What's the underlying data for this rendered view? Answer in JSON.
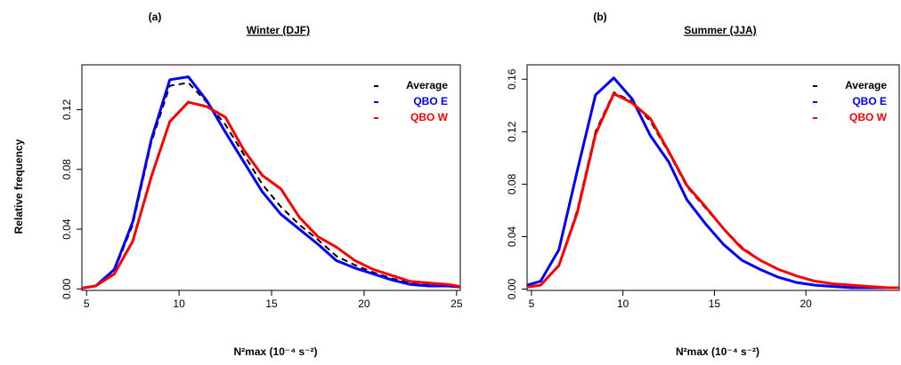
{
  "chart_data": [
    {
      "type": "line",
      "panel_label": "(a)",
      "title": "Winter (DJF)",
      "ylabel": "Relative frequency",
      "xlabel": "N²max (10⁻⁴ s⁻²)",
      "x": [
        4.5,
        5.5,
        6.5,
        7.5,
        8.5,
        9.5,
        10.5,
        11.5,
        12.5,
        13.5,
        14.5,
        15.5,
        16.5,
        17.5,
        18.5,
        19.5,
        20.5,
        21.5,
        22.5,
        23.5,
        24.5,
        25.5
      ],
      "series": [
        {
          "name": "Average",
          "color": "#000000",
          "dashed": true,
          "values": [
            0,
            0.002,
            0.012,
            0.043,
            0.098,
            0.136,
            0.138,
            0.125,
            0.11,
            0.09,
            0.07,
            0.055,
            0.043,
            0.033,
            0.022,
            0.016,
            0.011,
            0.007,
            0.004,
            0.003,
            0.002,
            0.001
          ]
        },
        {
          "name": "QBO E",
          "color": "#0000ff",
          "values": [
            0,
            0.002,
            0.013,
            0.045,
            0.1,
            0.14,
            0.142,
            0.126,
            0.105,
            0.085,
            0.065,
            0.05,
            0.04,
            0.03,
            0.019,
            0.014,
            0.01,
            0.006,
            0.003,
            0.002,
            0.002,
            0.001
          ]
        },
        {
          "name": "QBO W",
          "color": "#ff0000",
          "values": [
            0,
            0.002,
            0.01,
            0.032,
            0.075,
            0.112,
            0.125,
            0.122,
            0.115,
            0.093,
            0.076,
            0.067,
            0.048,
            0.035,
            0.028,
            0.019,
            0.013,
            0.009,
            0.005,
            0.004,
            0.003,
            0.001
          ]
        }
      ],
      "xlim": [
        4.75,
        25.2
      ],
      "xticks": [
        5,
        10,
        15,
        20,
        25
      ],
      "ylim": [
        -0.001,
        0.15
      ],
      "yticks": [
        {
          "value": 0,
          "label": "0.00"
        },
        {
          "value": 0.04,
          "label": "0.04"
        },
        {
          "value": 0.08,
          "label": "0.08"
        },
        {
          "value": 0.12,
          "label": "0.12"
        }
      ],
      "legend": "top-right"
    },
    {
      "type": "line",
      "panel_label": "(b)",
      "title": "Summer (JJA)",
      "xlabel": "N²max (10⁻⁴ s⁻²)",
      "x": [
        4.5,
        5.5,
        6.5,
        7.5,
        8.5,
        9.5,
        10.5,
        11.5,
        12.5,
        13.5,
        14.5,
        15.5,
        16.5,
        17.5,
        18.5,
        19.5,
        20.5,
        21.5,
        22.5,
        23.5,
        24.5,
        25.5
      ],
      "series": [
        {
          "name": "Average",
          "color": "#000000",
          "dashed": true,
          "values": [
            0.001,
            0.003,
            0.018,
            0.06,
            0.12,
            0.15,
            0.143,
            0.128,
            0.104,
            0.078,
            0.062,
            0.046,
            0.032,
            0.022,
            0.015,
            0.01,
            0.006,
            0.004,
            0.003,
            0.002,
            0.001,
            0.001
          ]
        },
        {
          "name": "QBO E",
          "color": "#0000ff",
          "values": [
            0.002,
            0.006,
            0.03,
            0.09,
            0.148,
            0.161,
            0.145,
            0.117,
            0.097,
            0.068,
            0.05,
            0.034,
            0.022,
            0.015,
            0.009,
            0.005,
            0.003,
            0.002,
            0.001,
            0.001,
            0.001,
            0.001
          ]
        },
        {
          "name": "QBO W",
          "color": "#ff0000",
          "values": [
            0.001,
            0.003,
            0.018,
            0.058,
            0.118,
            0.149,
            0.142,
            0.13,
            0.105,
            0.079,
            0.063,
            0.046,
            0.031,
            0.022,
            0.015,
            0.01,
            0.006,
            0.004,
            0.003,
            0.002,
            0.001,
            0.001
          ]
        }
      ],
      "xlim": [
        4.76,
        25.1
      ],
      "xticks": [
        5,
        10,
        15,
        20
      ],
      "ylim": [
        -0.001,
        0.171
      ],
      "yticks": [
        {
          "value": 0,
          "label": "0.00"
        },
        {
          "value": 0.04,
          "label": "0.04"
        },
        {
          "value": 0.08,
          "label": "0.08"
        },
        {
          "value": 0.12,
          "label": "0.12"
        },
        {
          "value": 0.16,
          "label": "0.16"
        }
      ],
      "legend": "top-right"
    }
  ]
}
